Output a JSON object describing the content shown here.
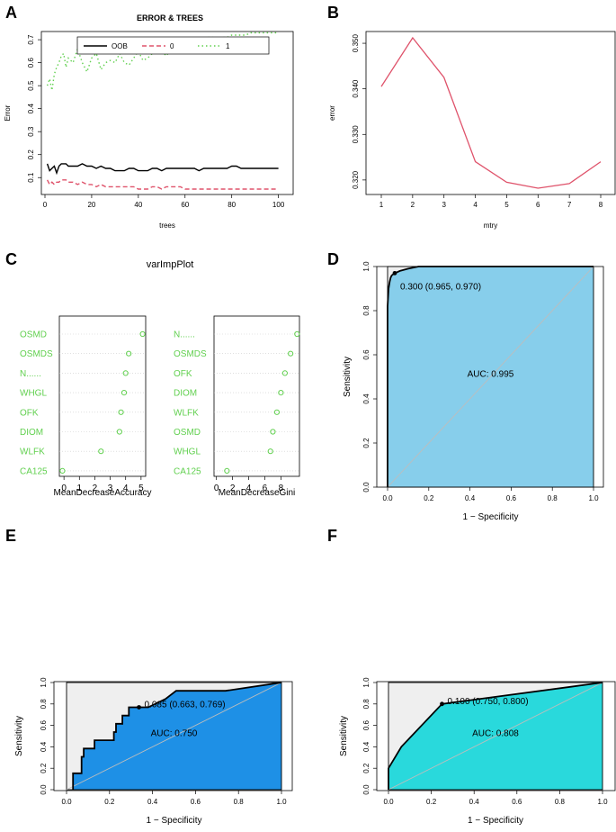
{
  "chart_data": [
    {
      "id": "A",
      "panel_letter": "A",
      "type": "line",
      "title": "ERROR & TREES",
      "xlabel": "trees",
      "ylabel": "Error",
      "xlim": [
        0,
        100
      ],
      "ylim": [
        0.07,
        0.7
      ],
      "xticks": [
        0,
        20,
        40,
        60,
        80,
        100
      ],
      "yticks": [
        0.1,
        0.2,
        0.3,
        0.4,
        0.5,
        0.6,
        0.7
      ],
      "legend": {
        "placement": "top",
        "entries": [
          "OOB",
          "0",
          "1"
        ]
      },
      "series": [
        {
          "name": "OOB",
          "color": "#000000",
          "style": "solid",
          "x": [
            1,
            2,
            3,
            4,
            5,
            6,
            7,
            8,
            9,
            10,
            12,
            14,
            16,
            18,
            20,
            22,
            24,
            26,
            28,
            30,
            32,
            34,
            36,
            38,
            40,
            42,
            44,
            46,
            48,
            50,
            52,
            54,
            56,
            58,
            60,
            62,
            64,
            66,
            68,
            70,
            72,
            74,
            76,
            78,
            80,
            82,
            84,
            86,
            88,
            90,
            92,
            94,
            96,
            98,
            100
          ],
          "y": [
            0.16,
            0.13,
            0.14,
            0.15,
            0.12,
            0.15,
            0.16,
            0.16,
            0.16,
            0.15,
            0.15,
            0.15,
            0.16,
            0.15,
            0.15,
            0.14,
            0.15,
            0.14,
            0.14,
            0.13,
            0.13,
            0.13,
            0.14,
            0.14,
            0.13,
            0.13,
            0.13,
            0.14,
            0.14,
            0.13,
            0.14,
            0.14,
            0.14,
            0.14,
            0.14,
            0.14,
            0.14,
            0.13,
            0.14,
            0.14,
            0.14,
            0.14,
            0.14,
            0.14,
            0.15,
            0.15,
            0.14,
            0.14,
            0.14,
            0.14,
            0.14,
            0.14,
            0.14,
            0.14,
            0.14
          ]
        },
        {
          "name": "0",
          "color": "#df536b",
          "style": "dashed",
          "x": [
            1,
            2,
            3,
            4,
            5,
            6,
            7,
            8,
            9,
            10,
            12,
            14,
            16,
            18,
            20,
            22,
            24,
            26,
            28,
            30,
            32,
            34,
            36,
            38,
            40,
            42,
            44,
            46,
            48,
            50,
            52,
            54,
            56,
            58,
            60,
            62,
            64,
            66,
            68,
            70,
            72,
            74,
            76,
            78,
            80,
            82,
            84,
            86,
            88,
            90,
            92,
            94,
            96,
            98,
            100
          ],
          "y": [
            0.09,
            0.07,
            0.08,
            0.07,
            0.08,
            0.08,
            0.09,
            0.09,
            0.09,
            0.08,
            0.08,
            0.07,
            0.08,
            0.07,
            0.07,
            0.06,
            0.07,
            0.06,
            0.06,
            0.06,
            0.06,
            0.06,
            0.06,
            0.06,
            0.05,
            0.05,
            0.05,
            0.06,
            0.06,
            0.05,
            0.06,
            0.06,
            0.06,
            0.06,
            0.05,
            0.05,
            0.05,
            0.05,
            0.05,
            0.05,
            0.05,
            0.05,
            0.05,
            0.05,
            0.05,
            0.05,
            0.05,
            0.05,
            0.05,
            0.05,
            0.05,
            0.05,
            0.05,
            0.05,
            0.05
          ]
        },
        {
          "name": "1",
          "color": "#61d04f",
          "style": "dotted",
          "x": [
            1,
            2,
            3,
            4,
            5,
            6,
            7,
            8,
            9,
            10,
            12,
            14,
            16,
            18,
            20,
            22,
            24,
            26,
            28,
            30,
            32,
            34,
            36,
            38,
            40,
            42,
            44,
            46,
            48,
            50,
            52,
            54,
            56,
            58,
            60,
            62,
            64,
            66,
            68,
            70,
            72,
            74,
            76,
            78,
            80,
            82,
            84,
            86,
            88,
            90,
            92,
            94,
            96,
            98,
            100
          ],
          "y": [
            0.5,
            0.53,
            0.48,
            0.55,
            0.58,
            0.6,
            0.63,
            0.64,
            0.58,
            0.62,
            0.6,
            0.66,
            0.6,
            0.56,
            0.62,
            0.64,
            0.57,
            0.6,
            0.61,
            0.6,
            0.64,
            0.6,
            0.59,
            0.62,
            0.65,
            0.61,
            0.62,
            0.64,
            0.68,
            0.65,
            0.63,
            0.66,
            0.7,
            0.66,
            0.68,
            0.67,
            0.69,
            0.7,
            0.7,
            0.71,
            0.71,
            0.7,
            0.71,
            0.71,
            0.72,
            0.72,
            0.72,
            0.72,
            0.73,
            0.73,
            0.73,
            0.73,
            0.73,
            0.73,
            0.73
          ]
        }
      ]
    },
    {
      "id": "B",
      "panel_letter": "B",
      "type": "line",
      "title": "",
      "xlabel": "mtry",
      "ylabel": "error",
      "xlim": [
        1,
        8
      ],
      "ylim": [
        0.318,
        0.351
      ],
      "xticks": [
        1,
        2,
        3,
        4,
        5,
        6,
        7,
        8
      ],
      "yticks": [
        0.32,
        0.33,
        0.34,
        0.35
      ],
      "color": "#df536b",
      "x": [
        1,
        2,
        3,
        4,
        5,
        6,
        7,
        8
      ],
      "y": [
        0.3405,
        0.3512,
        0.3425,
        0.324,
        0.3195,
        0.3182,
        0.3192,
        0.324
      ]
    },
    {
      "id": "C",
      "panel_letter": "C",
      "type": "scatter",
      "title": "varImpPlot",
      "panels": [
        {
          "xlabel": "MeanDecreaseAccuracy",
          "xlim": [
            -0.3,
            5.3
          ],
          "xticks": [
            0,
            1,
            2,
            3,
            4,
            5
          ],
          "labels": [
            "OSMD",
            "OSMDS",
            "N......",
            "WHGL",
            "OFK",
            "DIOM",
            "WLFK",
            "CA125"
          ],
          "values": [
            5.1,
            4.2,
            4.0,
            3.9,
            3.7,
            3.6,
            2.4,
            -0.1
          ]
        },
        {
          "xlabel": "MeanDecreaseGini",
          "xlim": [
            -0.3,
            10.3
          ],
          "xticks": [
            0,
            2,
            4,
            6,
            8
          ],
          "labels": [
            "N......",
            "OSMDS",
            "OFK",
            "DIOM",
            "WLFK",
            "OSMD",
            "WHGL",
            "CA125"
          ],
          "values": [
            10.0,
            9.2,
            8.5,
            8.0,
            7.5,
            7.0,
            6.7,
            1.3
          ]
        }
      ]
    },
    {
      "id": "D",
      "panel_letter": "D",
      "type": "area",
      "fill": "#87ceeb",
      "xlabel": "1 − Specificity",
      "ylabel": "Sensitivity",
      "xticks": [
        "0.0",
        "0.2",
        "0.4",
        "0.6",
        "0.8",
        "1.0"
      ],
      "yticks": [
        "0.0",
        "0.2",
        "0.4",
        "0.6",
        "0.8",
        "1.0"
      ],
      "roc_x": [
        0,
        0,
        0.005,
        0.01,
        0.015,
        0.02,
        0.035,
        0.06,
        0.1,
        0.15,
        1
      ],
      "roc_y": [
        0,
        0.82,
        0.9,
        0.93,
        0.95,
        0.96,
        0.97,
        0.98,
        0.99,
        1.0,
        1.0
      ],
      "threshold_point": [
        0.035,
        0.97
      ],
      "threshold_label": "0.300 (0.965, 0.970)",
      "auc_label": "AUC: 0.995"
    },
    {
      "id": "E",
      "panel_letter": "E",
      "type": "area",
      "fill": "#1e90e6",
      "xlabel": "1 − Specificity",
      "ylabel": "Sensitivity",
      "xticks": [
        "0.0",
        "0.2",
        "0.4",
        "0.6",
        "0.8",
        "1.0"
      ],
      "yticks": [
        "0.0",
        "0.2",
        "0.4",
        "0.6",
        "0.8",
        "1.0"
      ],
      "roc_x": [
        0.03,
        0.03,
        0.07,
        0.07,
        0.08,
        0.08,
        0.13,
        0.13,
        0.22,
        0.22,
        0.23,
        0.23,
        0.26,
        0.26,
        0.29,
        0.29,
        0.33,
        0.33,
        0.38,
        0.38,
        0.46,
        0.51,
        0.74,
        1.0
      ],
      "roc_y": [
        0.0,
        0.153,
        0.153,
        0.307,
        0.307,
        0.384,
        0.384,
        0.461,
        0.461,
        0.538,
        0.538,
        0.615,
        0.615,
        0.692,
        0.692,
        0.769,
        0.769,
        0.769,
        0.769,
        0.769,
        0.846,
        0.923,
        0.923,
        1.0
      ],
      "threshold_point": [
        0.337,
        0.769
      ],
      "threshold_label": "0.085 (0.663, 0.769)",
      "auc_label": "AUC: 0.750"
    },
    {
      "id": "F",
      "panel_letter": "F",
      "type": "area",
      "fill": "#29d9dc",
      "xlabel": "1 − Specificity",
      "ylabel": "Sensitivity",
      "xticks": [
        "0.0",
        "0.2",
        "0.4",
        "0.6",
        "0.8",
        "1.0"
      ],
      "yticks": [
        "0.0",
        "0.2",
        "0.4",
        "0.6",
        "0.8",
        "1.0"
      ],
      "roc_x": [
        0,
        0,
        0.06,
        0.25,
        1.0
      ],
      "roc_y": [
        0,
        0.2,
        0.4,
        0.8,
        1.0
      ],
      "threshold_point": [
        0.25,
        0.8
      ],
      "threshold_label": "0.100 (0.750, 0.800)",
      "auc_label": "AUC: 0.808"
    }
  ]
}
